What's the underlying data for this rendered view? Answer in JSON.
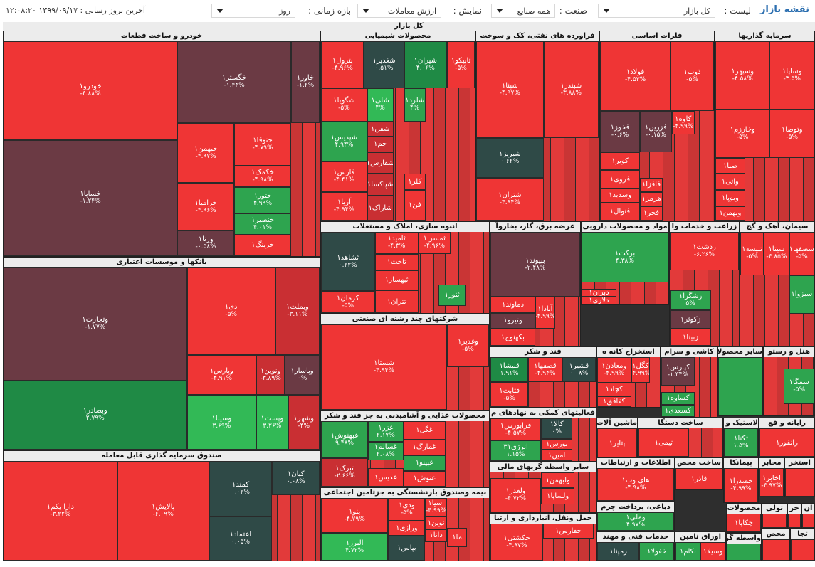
{
  "header": {
    "brand": "نقشه بازار",
    "list_label": "لیست :",
    "list_value": "کل بازار",
    "industry_label": "صنعت :",
    "industry_value": "همه صنایع",
    "display_label": "نمایش :",
    "display_value": "ارزش معاملات",
    "period_label": "بازه زمانی :",
    "period_value": "روز",
    "last_update": "آخرین بروز رسانی : ۱۳۹۹/۰۹/۱۷ ۱۲:۰۸:۲۰"
  },
  "treemap_title": "کل بازار",
  "colors": {
    "neg_strong": "#ef3535",
    "neg": "#c92f33",
    "neutral": "#3a3a3a",
    "pos": "#2ea44f"
  },
  "sectors": [
    {
      "title": "خودرو و ساخت قطعات",
      "cells": [
        {
          "name": "خودرو۱",
          "pct": "-۴.۸۸%"
        },
        {
          "name": "خگستر۱",
          "pct": "-۱.۴۴%"
        },
        {
          "name": "خاور۱",
          "pct": "-۱.۲%"
        },
        {
          "name": "خساپا۱",
          "pct": "-۱.۲۴%"
        },
        {
          "name": "خبهمن۱",
          "pct": "-۴.۹۷%"
        },
        {
          "name": "ختوقا۱",
          "pct": "-۴.۷۹%"
        },
        {
          "name": "خزامیا۱",
          "pct": "-۴.۹۶%"
        },
        {
          "name": "خکمک۱",
          "pct": "-۴.۹۸%"
        },
        {
          "name": "ختور۱",
          "pct": "۴.۹۹%"
        },
        {
          "name": "ورنا۱",
          "pct": "-۰.۵۸%"
        },
        {
          "name": "خنصیر۱",
          "pct": "۴.۰۱%"
        },
        {
          "name": "خرینگ۱",
          "pct": ""
        }
      ]
    },
    {
      "title": "بانکها و موسسات اعتباری",
      "cells": [
        {
          "name": "وتجارت۱",
          "pct": "-۱.۷۷%"
        },
        {
          "name": "دی۱",
          "pct": "-۵%"
        },
        {
          "name": "وبملت۱",
          "pct": "-۳.۱۱%"
        },
        {
          "name": "وپارس۱",
          "pct": "-۴.۹۱%"
        },
        {
          "name": "ونوین۱",
          "pct": "-۳.۸۹%"
        },
        {
          "name": "وپاسار۱",
          "pct": "۰%"
        },
        {
          "name": "وبصادر۱",
          "pct": "۲.۷۹%"
        },
        {
          "name": "وسینا۱",
          "pct": "۳.۶۹%"
        },
        {
          "name": "وپست۱",
          "pct": "۳.۲۶%"
        },
        {
          "name": "وشهر۱",
          "pct": "-۴%"
        }
      ]
    },
    {
      "title": "صندوق سرمایه گذاری قابل معامله",
      "cells": [
        {
          "name": "دارا یکم۱",
          "pct": "-۳.۲۲%"
        },
        {
          "name": "پالایش۱",
          "pct": "-۶.۰۹%"
        },
        {
          "name": "کمند۱",
          "pct": "۰.۰۲%"
        },
        {
          "name": "کیان۱",
          "pct": "۰.۰۸%"
        },
        {
          "name": "اعتماد۱",
          "pct": "۰.۰۵%"
        }
      ]
    },
    {
      "title": "محصولات شیمیایی",
      "cells": [
        {
          "name": "پترول۱",
          "pct": "-۴.۹۶%"
        },
        {
          "name": "شغدیر۱",
          "pct": "۰.۵۱%"
        },
        {
          "name": "شیران۱",
          "pct": "۴.۰۶%"
        },
        {
          "name": "تاپیکو۱",
          "pct": "-۵%"
        },
        {
          "name": "شگویا۱",
          "pct": "-۵%"
        },
        {
          "name": "شلی۱",
          "pct": "۴%"
        },
        {
          "name": "شلرد۱",
          "pct": "۴%"
        },
        {
          "name": "شپدیس۱",
          "pct": "۴.۹۴%"
        },
        {
          "name": "شفن۱",
          "pct": ""
        },
        {
          "name": "جم۱",
          "pct": ""
        },
        {
          "name": "فارس۱",
          "pct": "-۴.۴۱%"
        },
        {
          "name": "شفارس۱",
          "pct": ""
        },
        {
          "name": "شپاکسا۱",
          "pct": ""
        },
        {
          "name": "کلر۱",
          "pct": ""
        },
        {
          "name": "آریا۱",
          "pct": "-۴.۹۴%"
        },
        {
          "name": "شاراک۱",
          "pct": ""
        },
        {
          "name": "فن۱",
          "pct": ""
        }
      ]
    },
    {
      "title": "فراورده های نفتی، کک و سوخت",
      "cells": [
        {
          "name": "شپنا۱",
          "pct": "-۴.۹۷%"
        },
        {
          "name": "شبندر۱",
          "pct": "-۳.۸۸%"
        },
        {
          "name": "شبریز۱",
          "pct": "۰.۶۲%"
        },
        {
          "name": "شتران۱",
          "pct": "-۴.۹۴%"
        }
      ]
    },
    {
      "title": "فلزات اساسی",
      "cells": [
        {
          "name": "فولاد۱",
          "pct": "-۴.۵۳%"
        },
        {
          "name": "ذوب۱",
          "pct": "-۵%"
        },
        {
          "name": "فخوز۱",
          "pct": "-۰.۶%"
        },
        {
          "name": "فزرین۱",
          "pct": "-۰.۱۵%"
        },
        {
          "name": "کاوه۱",
          "pct": "-۴.۹۹%"
        },
        {
          "name": "کویر۱",
          "pct": ""
        },
        {
          "name": "فروی۱",
          "pct": ""
        },
        {
          "name": "وسدید۱",
          "pct": ""
        },
        {
          "name": "فافزا۱",
          "pct": ""
        },
        {
          "name": "هرمز۱",
          "pct": ""
        },
        {
          "name": "فنوال۱",
          "pct": ""
        },
        {
          "name": "فجر۱",
          "pct": ""
        }
      ]
    },
    {
      "title": "سرمایه گذاریها",
      "cells": [
        {
          "name": "وسپهر۱",
          "pct": "-۴.۵۸%"
        },
        {
          "name": "وساپا۱",
          "pct": "-۳.۵%"
        },
        {
          "name": "وخارزم۱",
          "pct": "-۵%"
        },
        {
          "name": "وتوصا۱",
          "pct": "-۵%"
        },
        {
          "name": "صبا۱",
          "pct": ""
        },
        {
          "name": "واتی۱",
          "pct": ""
        },
        {
          "name": "وبوپا۱",
          "pct": ""
        },
        {
          "name": "وبهمن۱",
          "pct": ""
        }
      ]
    },
    {
      "title": "انبوه سازی، املاک و مستغلات",
      "cells": [
        {
          "name": "ثشاهد۱",
          "pct": "۰.۲۲%"
        },
        {
          "name": "ثامید۱",
          "pct": "-۴.۳%"
        },
        {
          "name": "ثمسرا۱",
          "pct": "-۴.۹۶%"
        },
        {
          "name": "ثاخت۱",
          "pct": ""
        },
        {
          "name": "ثبهساز۱",
          "pct": ""
        },
        {
          "name": "کرمان۱",
          "pct": "-۵%"
        },
        {
          "name": "ثنور۱",
          "pct": ""
        },
        {
          "name": "ثتران۱",
          "pct": ""
        }
      ]
    },
    {
      "title": "عرضه برق، گاز، بخاروآ",
      "cells": [
        {
          "name": "بپیوند۱",
          "pct": "-۲.۴۸%"
        },
        {
          "name": "دماوند۱",
          "pct": ""
        },
        {
          "name": "وتیرو۱",
          "pct": ""
        },
        {
          "name": "بکهنوج۱",
          "pct": ""
        },
        {
          "name": "آبادا۱",
          "pct": "-۴.۹۹%"
        }
      ]
    },
    {
      "title": "مواد و محصولات دارویی",
      "cells": [
        {
          "name": "برکت۱",
          "pct": "۴.۳۸%"
        },
        {
          "name": "دبران۱",
          "pct": ""
        },
        {
          "name": "دلاری۱",
          "pct": ""
        }
      ]
    },
    {
      "title": "زراعت و خدمات وا",
      "cells": [
        {
          "name": "زدشت۱",
          "pct": "-۶.۲۶%"
        },
        {
          "name": "زشگزا۱",
          "pct": "۵%"
        },
        {
          "name": "زکوثر۱",
          "pct": ""
        },
        {
          "name": "زبینا۱",
          "pct": ""
        }
      ]
    },
    {
      "title": "سیمان، آهک و گچ",
      "cells": [
        {
          "name": "تلیسه۱",
          "pct": "-۵%"
        },
        {
          "name": "سیتا۱",
          "pct": "-۴.۸۵%"
        },
        {
          "name": "سصفها۱",
          "pct": "-۵%"
        },
        {
          "name": "سبزوا۱",
          "pct": ""
        }
      ]
    },
    {
      "title": "شرکتهای چند رشته ای صنعتی",
      "cells": [
        {
          "name": "شستا۱",
          "pct": "-۴.۹۴%"
        },
        {
          "name": "وغدیر۱",
          "pct": "-۵%"
        }
      ]
    },
    {
      "title": "قند و شکر",
      "cells": [
        {
          "name": "قنیشا۱",
          "pct": "۱.۹۱%"
        },
        {
          "name": "قصفها۱",
          "pct": "-۴.۹۴%"
        },
        {
          "name": "قشیر۱",
          "pct": "۰.۰۸%"
        },
        {
          "name": "قثابت۱",
          "pct": "-۵%"
        }
      ]
    },
    {
      "title": "استخراج کانه ه",
      "cells": [
        {
          "name": "ومعادن۱",
          "pct": "-۴.۹۹%"
        },
        {
          "name": "کگل۱",
          "pct": "-۴.۹۹%"
        },
        {
          "name": "کچاد۱",
          "pct": ""
        },
        {
          "name": "کفافق۱",
          "pct": ""
        }
      ]
    },
    {
      "title": "کاشی و سرام",
      "cells": [
        {
          "name": "کپارس۱",
          "pct": "-۱.۳۴%"
        },
        {
          "name": "کساوه۱",
          "pct": ""
        },
        {
          "name": "کسعدی۱",
          "pct": ""
        }
      ]
    },
    {
      "title": "سایر محصولا",
      "cells": [
        {
          "name": "",
          "pct": ""
        }
      ]
    },
    {
      "title": "هتل و رستو",
      "cells": [
        {
          "name": "سمگا۱",
          "pct": "-۵%"
        }
      ]
    },
    {
      "title": "محصولات غذایی و آشامیدنی به جز قند و شکر",
      "cells": [
        {
          "name": "غبهنوش۱",
          "pct": "۹.۴۸%"
        },
        {
          "name": "غزر۱",
          "pct": "۲.۱۷%"
        },
        {
          "name": "غسالم۱",
          "pct": "۲.۰۸%"
        },
        {
          "name": "غگل۱",
          "pct": ""
        },
        {
          "name": "غمارگ۱",
          "pct": ""
        },
        {
          "name": "غپینو۱",
          "pct": ""
        },
        {
          "name": "تبرک۱",
          "pct": "-۲.۶۶%"
        },
        {
          "name": "غدیس۱",
          "pct": ""
        },
        {
          "name": "غنوش۱",
          "pct": ""
        }
      ]
    },
    {
      "title": "فعالیتهای کمکی به نهادهای م",
      "cells": [
        {
          "name": "فرابورس۱",
          "pct": "-۴.۵۷%"
        },
        {
          "name": "کالا۱",
          "pct": "۰%"
        },
        {
          "name": "انرژی۳۱",
          "pct": "۱.۱۵%"
        },
        {
          "name": "بورس۱",
          "pct": ""
        },
        {
          "name": "امین۱",
          "pct": ""
        }
      ]
    },
    {
      "title": "سایر واسطه گریهای مالی",
      "cells": [
        {
          "name": "ولبهمن۱",
          "pct": ""
        },
        {
          "name": "ولغدر۱",
          "pct": "-۴.۷۲%"
        },
        {
          "name": "ولساپا۱",
          "pct": ""
        }
      ]
    },
    {
      "title": "بیمه وصندوق بازنشستگی به جزتامین اجتماعی",
      "cells": [
        {
          "name": "بنو۱",
          "pct": "-۴.۷۹%"
        },
        {
          "name": "ودی۱",
          "pct": "-۵%"
        },
        {
          "name": "آسیا۱",
          "pct": "-۴.۹۹%"
        },
        {
          "name": "نوین۱",
          "pct": ""
        },
        {
          "name": "ورازی۱",
          "pct": ""
        },
        {
          "name": "دانا۱",
          "pct": ""
        },
        {
          "name": "البرز۱",
          "pct": "۴.۷۲%"
        },
        {
          "name": "بپاس۱",
          "pct": ""
        },
        {
          "name": "ما۱",
          "pct": ""
        }
      ]
    },
    {
      "title": "حمل ونقل، انبارداری و ارتبا",
      "cells": [
        {
          "name": "حکشتی۱",
          "pct": "-۴.۹۷%"
        },
        {
          "name": "حفارس۱",
          "pct": ""
        }
      ]
    },
    {
      "title": "ماشین آلات",
      "cells": [
        {
          "name": "پتایر۱",
          "pct": ""
        }
      ]
    },
    {
      "title": "ساخت دستگا",
      "cells": [
        {
          "name": "تیمی۱",
          "pct": ""
        }
      ]
    },
    {
      "title": "لاستیک و پلاستیک",
      "cells": [
        {
          "name": "تکنا۱",
          "pct": "۱.۵%"
        }
      ]
    },
    {
      "title": "رایانه و فع",
      "cells": [
        {
          "name": "رانفور۱",
          "pct": ""
        }
      ]
    },
    {
      "title": "اطلاعات و ارتباطات",
      "cells": [
        {
          "name": "های وب۱",
          "pct": "-۴.۹۸%"
        }
      ]
    },
    {
      "title": "ساخت محص",
      "cells": [
        {
          "name": "فاذر۱",
          "pct": ""
        }
      ]
    },
    {
      "title": "پیمانکا",
      "cells": [
        {
          "name": "خصدرا۱",
          "pct": "-۴.۹۹%"
        }
      ]
    },
    {
      "title": "مخابر",
      "cells": [
        {
          "name": "اخابر۱",
          "pct": "-۴.۹۷%"
        }
      ]
    },
    {
      "title": "استخر",
      "cells": [
        {
          "name": "",
          "pct": ""
        }
      ]
    },
    {
      "title": "دباغی، پرداخت چرم",
      "cells": [
        {
          "name": "وملی۱",
          "pct": "۴.۹۷%"
        }
      ]
    },
    {
      "title": "خدمات فنی و مهند",
      "cells": [
        {
          "name": "رمپنا۱",
          "pct": ""
        },
        {
          "name": "خفولا۱",
          "pct": ""
        }
      ]
    },
    {
      "title": "اوراق تامین",
      "cells": [
        {
          "name": "بکام۱",
          "pct": ""
        },
        {
          "name": "وسیلا۱",
          "pct": ""
        }
      ]
    },
    {
      "title": "محصولات",
      "cells": [
        {
          "name": "چکاپا۱",
          "pct": ""
        }
      ]
    },
    {
      "title": "تولی",
      "cells": [
        {
          "name": "",
          "pct": ""
        }
      ]
    },
    {
      "title": "خر",
      "cells": [
        {
          "name": "",
          "pct": ""
        }
      ]
    },
    {
      "title": "ان",
      "cells": [
        {
          "name": "",
          "pct": ""
        }
      ]
    },
    {
      "title": "واسطه گری",
      "cells": [
        {
          "name": "",
          "pct": ""
        }
      ]
    },
    {
      "title": "محص",
      "cells": [
        {
          "name": "",
          "pct": ""
        }
      ]
    },
    {
      "title": "تجا",
      "cells": [
        {
          "name": "",
          "pct": ""
        }
      ]
    }
  ]
}
